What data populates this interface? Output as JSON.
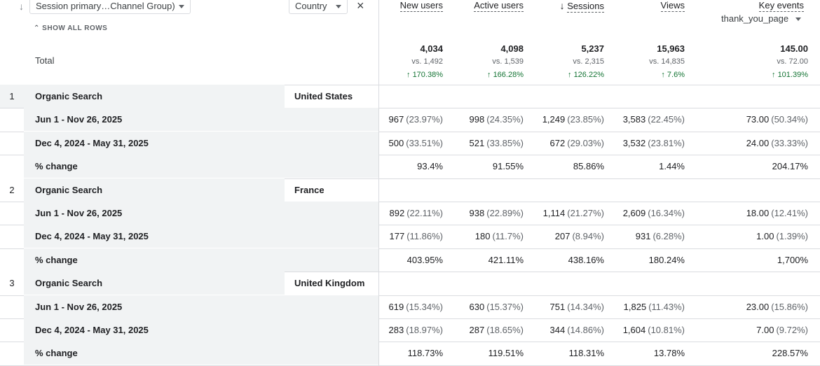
{
  "header": {
    "dim1_label": "Session primary…Channel Group)",
    "dim2_label": "Country",
    "show_all_rows": "SHOW ALL ROWS",
    "close_symbol": "×",
    "sort_arrow": "↓",
    "columns": [
      {
        "label": "New users"
      },
      {
        "label": "Active users"
      },
      {
        "label": "Sessions",
        "sorted": true
      },
      {
        "label": "Views"
      },
      {
        "label": "Key events",
        "sub": "thank_you_page"
      }
    ]
  },
  "total": {
    "label": "Total",
    "metrics": [
      {
        "value": "4,034",
        "vs": "vs. 1,492",
        "change": "170.38%"
      },
      {
        "value": "4,098",
        "vs": "vs. 1,539",
        "change": "166.28%"
      },
      {
        "value": "5,237",
        "vs": "vs. 2,315",
        "change": "126.22%"
      },
      {
        "value": "15,963",
        "vs": "vs. 14,835",
        "change": "7.6%"
      },
      {
        "value": "145.00",
        "vs": "vs. 72.00",
        "change": "101.39%"
      }
    ]
  },
  "groups": [
    {
      "index": "1",
      "channel": "Organic Search",
      "country": "United States",
      "rows": [
        {
          "label": "Jun 1 - Nov 26, 2025",
          "cells": [
            [
              "967",
              "(23.97%)"
            ],
            [
              "998",
              "(24.35%)"
            ],
            [
              "1,249",
              "(23.85%)"
            ],
            [
              "3,583",
              "(22.45%)"
            ],
            [
              "73.00",
              "(50.34%)"
            ]
          ]
        },
        {
          "label": "Dec 4, 2024 - May 31, 2025",
          "cells": [
            [
              "500",
              "(33.51%)"
            ],
            [
              "521",
              "(33.85%)"
            ],
            [
              "672",
              "(29.03%)"
            ],
            [
              "3,532",
              "(23.81%)"
            ],
            [
              "24.00",
              "(33.33%)"
            ]
          ]
        },
        {
          "label": "% change",
          "cells": [
            [
              "93.4%",
              ""
            ],
            [
              "91.55%",
              ""
            ],
            [
              "85.86%",
              ""
            ],
            [
              "1.44%",
              ""
            ],
            [
              "204.17%",
              ""
            ]
          ]
        }
      ]
    },
    {
      "index": "2",
      "channel": "Organic Search",
      "country": "France",
      "rows": [
        {
          "label": "Jun 1 - Nov 26, 2025",
          "cells": [
            [
              "892",
              "(22.11%)"
            ],
            [
              "938",
              "(22.89%)"
            ],
            [
              "1,114",
              "(21.27%)"
            ],
            [
              "2,609",
              "(16.34%)"
            ],
            [
              "18.00",
              "(12.41%)"
            ]
          ]
        },
        {
          "label": "Dec 4, 2024 - May 31, 2025",
          "cells": [
            [
              "177",
              "(11.86%)"
            ],
            [
              "180",
              "(11.7%)"
            ],
            [
              "207",
              "(8.94%)"
            ],
            [
              "931",
              "(6.28%)"
            ],
            [
              "1.00",
              "(1.39%)"
            ]
          ]
        },
        {
          "label": "% change",
          "cells": [
            [
              "403.95%",
              ""
            ],
            [
              "421.11%",
              ""
            ],
            [
              "438.16%",
              ""
            ],
            [
              "180.24%",
              ""
            ],
            [
              "1,700%",
              ""
            ]
          ]
        }
      ]
    },
    {
      "index": "3",
      "channel": "Organic Search",
      "country": "United Kingdom",
      "rows": [
        {
          "label": "Jun 1 - Nov 26, 2025",
          "cells": [
            [
              "619",
              "(15.34%)"
            ],
            [
              "630",
              "(15.37%)"
            ],
            [
              "751",
              "(14.34%)"
            ],
            [
              "1,825",
              "(11.43%)"
            ],
            [
              "23.00",
              "(15.86%)"
            ]
          ]
        },
        {
          "label": "Dec 4, 2024 - May 31, 2025",
          "cells": [
            [
              "283",
              "(18.97%)"
            ],
            [
              "287",
              "(18.65%)"
            ],
            [
              "344",
              "(14.86%)"
            ],
            [
              "1,604",
              "(10.81%)"
            ],
            [
              "7.00",
              "(9.72%)"
            ]
          ]
        },
        {
          "label": "% change",
          "cells": [
            [
              "118.73%",
              ""
            ],
            [
              "119.51%",
              ""
            ],
            [
              "118.31%",
              ""
            ],
            [
              "13.78%",
              ""
            ],
            [
              "228.57%",
              ""
            ]
          ]
        }
      ]
    }
  ]
}
